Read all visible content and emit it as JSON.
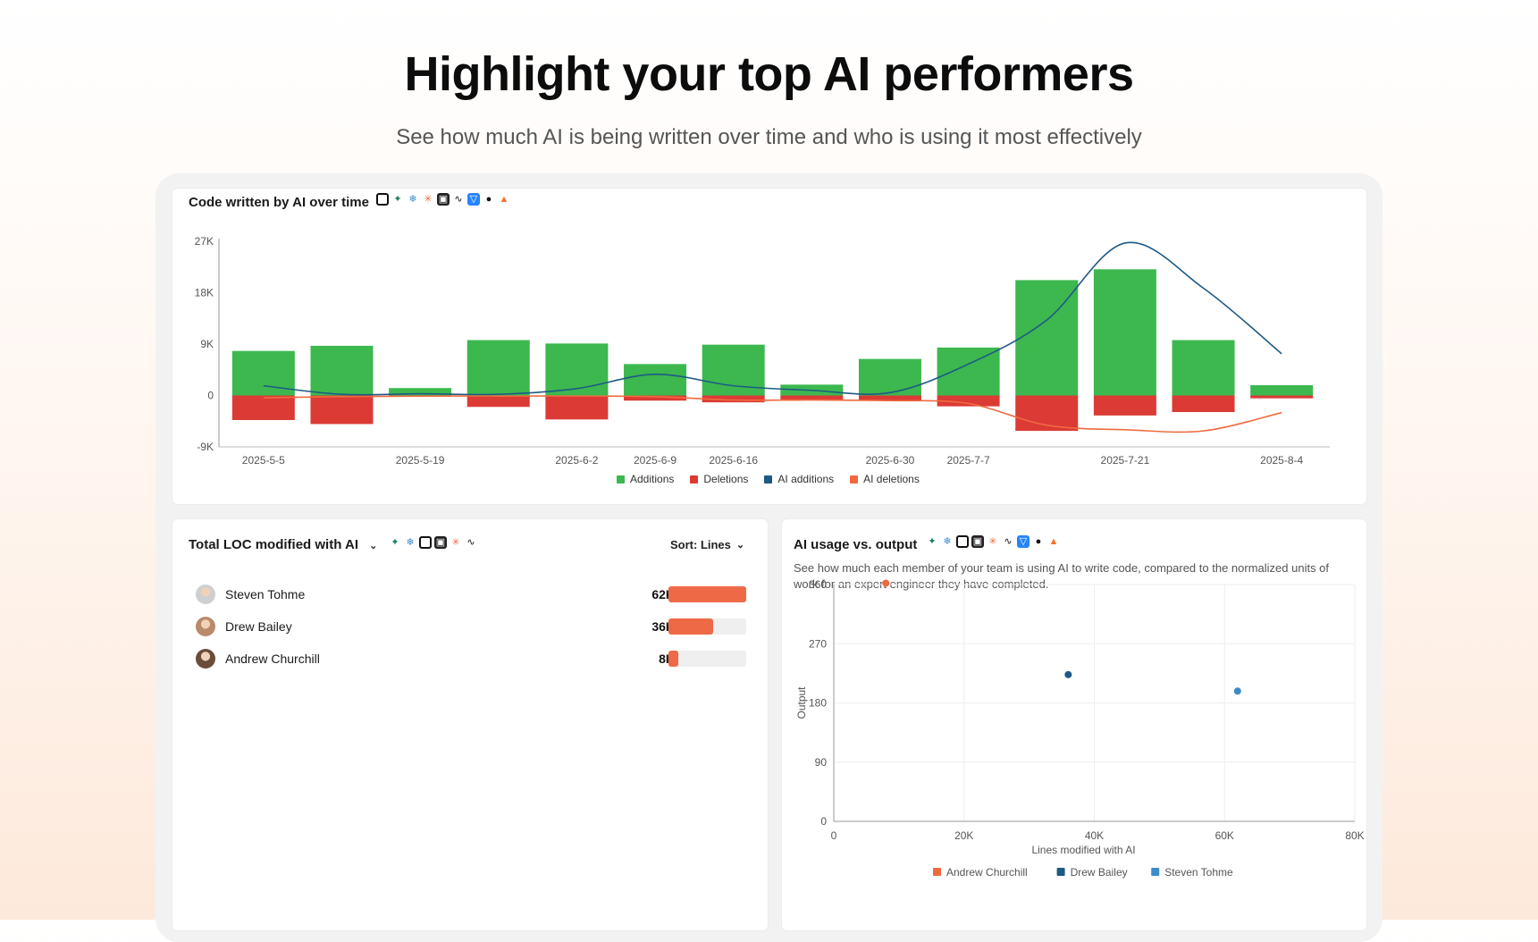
{
  "hero": {
    "title": "Highlight your top AI performers",
    "subtitle": "See how much AI is being written over time and who is using it most effectively"
  },
  "colors": {
    "additions": "#3cb84f",
    "deletions": "#dc3a35",
    "ai_additions": "#1d5a85",
    "ai_deletions": "#ef6a3f",
    "bar_fill": "#ee6a47"
  },
  "card_top": {
    "title": "Code written by AI over time",
    "tool_icons": [
      "cursor-icon",
      "copilot-icon",
      "claude-code-icon",
      "anthropic-icon",
      "windsurf-icon",
      "codeium-icon",
      "bitbucket-icon",
      "github-icon",
      "gitlab-icon"
    ]
  },
  "card_loc": {
    "title": "Total LOC modified with AI",
    "sort_label": "Sort: Lines",
    "tool_icons": [
      "copilot-icon",
      "claude-code-icon",
      "cursor-icon",
      "windsurf-icon",
      "anthropic-icon",
      "codeium-icon"
    ],
    "people": [
      {
        "name": "Steven Tohme",
        "value_label": "62K",
        "fraction": 1.0
      },
      {
        "name": "Drew Bailey",
        "value_label": "36K",
        "fraction": 0.58
      },
      {
        "name": "Andrew Churchill",
        "value_label": "8K",
        "fraction": 0.13
      }
    ]
  },
  "card_usage": {
    "title": "AI usage vs. output",
    "description": "See how much each member of your team is using AI to write code, compared to the normalized units of work for an expert engineer they have completed.",
    "tool_icons": [
      "copilot-icon",
      "claude-code-icon",
      "cursor-icon",
      "windsurf-icon",
      "anthropic-icon",
      "codeium-icon",
      "bitbucket-icon",
      "github-icon",
      "gitlab-icon"
    ]
  },
  "chart_data": [
    {
      "type": "bar",
      "title": "Code written by AI over time",
      "categories": [
        "2025-5-5",
        "2025-5-12",
        "2025-5-19",
        "2025-5-26",
        "2025-6-2",
        "2025-6-9",
        "2025-6-16",
        "2025-6-23",
        "2025-6-30",
        "2025-7-7",
        "2025-7-14",
        "2025-7-21",
        "2025-7-28",
        "2025-8-4"
      ],
      "tick_labels": [
        "2025-5-5",
        "2025-5-19",
        "2025-6-2",
        "2025-6-9",
        "2025-6-16",
        "2025-6-30",
        "2025-7-7",
        "2025-7-21",
        "2025-8-4"
      ],
      "y_ticks": [
        "27K",
        "18K",
        "9K",
        "0",
        "-9K"
      ],
      "ylim": [
        -9000,
        27000
      ],
      "series": [
        {
          "name": "Additions",
          "kind": "bar",
          "values": [
            7800,
            8700,
            1300,
            9700,
            9100,
            5500,
            8900,
            1900,
            6400,
            8400,
            20200,
            22100,
            9700,
            1800
          ]
        },
        {
          "name": "Deletions",
          "kind": "bar",
          "values": [
            -4300,
            -5000,
            -200,
            -2000,
            -4200,
            -900,
            -1200,
            -700,
            -900,
            -1900,
            -6200,
            -3500,
            -2900,
            -500
          ]
        },
        {
          "name": "AI additions",
          "kind": "line",
          "values": [
            1700,
            200,
            300,
            200,
            1200,
            3700,
            1700,
            900,
            500,
            5500,
            13200,
            26700,
            18800,
            7300
          ]
        },
        {
          "name": "AI deletions",
          "kind": "line",
          "values": [
            -400,
            -200,
            -100,
            -100,
            -100,
            -200,
            -800,
            -800,
            -900,
            -1400,
            -5200,
            -6000,
            -6200,
            -3000
          ]
        }
      ],
      "grid": false,
      "legend_position": "bottom-center"
    },
    {
      "type": "scatter",
      "title": "AI usage vs. output",
      "xlabel": "Lines modified with AI",
      "ylabel": "Output",
      "xlim": [
        0,
        80000
      ],
      "ylim": [
        0,
        360
      ],
      "x_ticks": [
        "0",
        "20K",
        "40K",
        "60K",
        "80K"
      ],
      "y_ticks": [
        "0",
        "90",
        "180",
        "270",
        "360"
      ],
      "series": [
        {
          "name": "Andrew Churchill",
          "color": "#ef6a3f",
          "points": [
            [
              8000,
              362
            ]
          ]
        },
        {
          "name": "Drew Bailey",
          "color": "#1d5a85",
          "points": [
            [
              36000,
              223
            ]
          ]
        },
        {
          "name": "Steven Tohme",
          "color": "#3a8cc8",
          "points": [
            [
              62000,
              198
            ]
          ]
        }
      ],
      "grid": true,
      "legend_position": "bottom-center"
    }
  ]
}
